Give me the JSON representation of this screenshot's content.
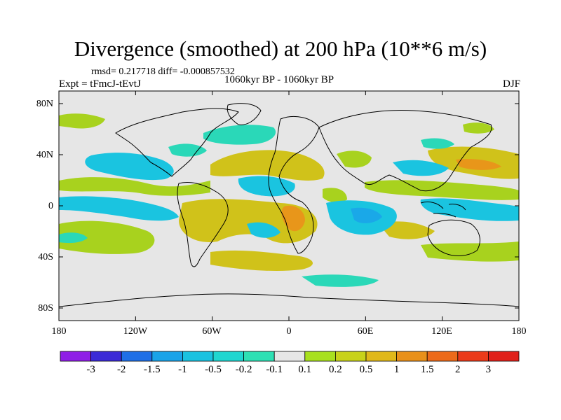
{
  "title": "Divergence (smoothed) at 200 hPa (10**6 m/s)",
  "stats": "rmsd= 0.217718 diff= -0.000857532",
  "experiment": "Expt = tFmcJ-tEvtJ",
  "period": "1060kyr BP - 1060kyr BP",
  "season": "DJF",
  "lat_labels": [
    "80N",
    "40N",
    "0",
    "40S",
    "80S"
  ],
  "lon_labels": [
    "180",
    "120W",
    "60W",
    "0",
    "60E",
    "120E",
    "180"
  ],
  "colorbar": {
    "labels": [
      "-3",
      "-2",
      "-1.5",
      "-1",
      "-0.5",
      "-0.2",
      "-0.1",
      "0.1",
      "0.2",
      "0.5",
      "1",
      "1.5",
      "2",
      "3"
    ],
    "colors": [
      "#8f1ee6",
      "#3b2ad6",
      "#1f6fe6",
      "#1aa3e8",
      "#1ac2e0",
      "#1fd6d0",
      "#2ee0b4",
      "#e6e6e6",
      "#a8e01e",
      "#c8d21a",
      "#e0b81a",
      "#e8901a",
      "#ec6a1a",
      "#ea3a1a",
      "#e0201a"
    ]
  },
  "field_colors": {
    "ocean_bg": "#e6e6e6",
    "pos_weak": "#a8d21e",
    "pos_mid": "#d0c21a",
    "pos_strong": "#e8961a",
    "neg_weak": "#2ad8b8",
    "neg_mid": "#1ac4e0",
    "neg_strong": "#1aa8e8"
  }
}
